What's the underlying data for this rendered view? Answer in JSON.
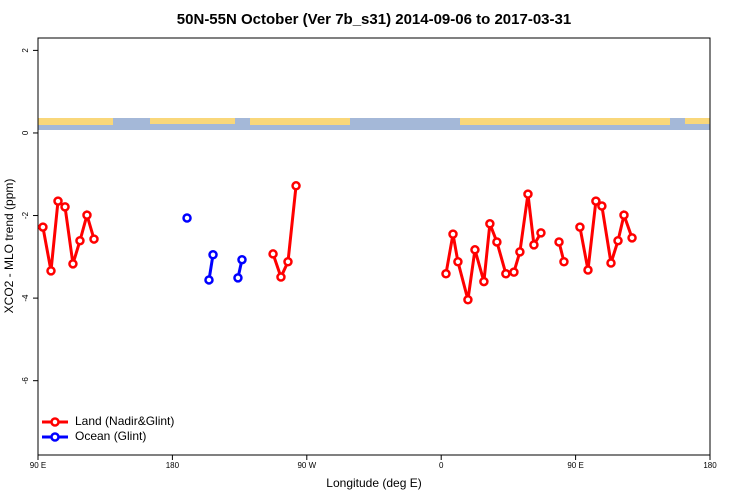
{
  "chart_data": {
    "type": "line",
    "title": "50N-55N October (Ver 7b_s31)   2014-09-06 to 2017-03-31",
    "x_label": "Longitude (deg E)",
    "y_label": "XCO2 - MLO trend (ppm)",
    "xlim": [
      90,
      540
    ],
    "xticks": [
      {
        "value": 90,
        "label": "90 E"
      },
      180,
      {
        "value": 270,
        "label": "90 W"
      },
      {
        "value": 360,
        "label": "0"
      },
      {
        "value": 450,
        "label": "90 E"
      },
      {
        "value": 540,
        "label": "180"
      }
    ],
    "ylim": [
      -7.8,
      2.3
    ],
    "yticks": [
      2,
      0,
      -2,
      -4,
      -6
    ],
    "legend": "bottom-left",
    "series": [
      {
        "name": "Land (Nadir&Glint)",
        "color": "#ff0000",
        "x": [
          93.3,
          98.7,
          103.4,
          108.1,
          113.4,
          118.1,
          122.8,
          127.5,
          null,
          247.4,
          252.7,
          257.4,
          262.8,
          null,
          363.2,
          367.9,
          371.2,
          377.9,
          382.6,
          388.6,
          392.6,
          397.3,
          403.3,
          408.7,
          412.7,
          418.1,
          422.1,
          426.8,
          null,
          438.9,
          442.2,
          null,
          452.9,
          458.3,
          463.6,
          467.6,
          473.7,
          478.4,
          482.4,
          487.8
        ],
        "values": [
          -2.28,
          -3.34,
          -1.65,
          -1.79,
          -3.17,
          -2.61,
          -1.99,
          -2.57,
          null,
          -2.93,
          -3.49,
          -3.12,
          -1.28,
          null,
          -3.41,
          -2.45,
          -3.12,
          -4.04,
          -2.83,
          -3.6,
          -2.2,
          -2.64,
          -3.41,
          -3.37,
          -2.88,
          -1.48,
          -2.71,
          -2.42,
          null,
          -2.64,
          -3.12,
          null,
          -2.28,
          -3.32,
          -1.65,
          -1.77,
          -3.15,
          -2.61,
          -1.99,
          -2.54
        ]
      },
      {
        "name": "Ocean (Glint)",
        "color": "#0000ff",
        "x": [
          189.8,
          null,
          204.5,
          207.2,
          null,
          223.9,
          226.6
        ],
        "values": [
          -2.06,
          null,
          -3.56,
          -2.95,
          null,
          -3.51,
          -3.07
        ]
      }
    ]
  }
}
